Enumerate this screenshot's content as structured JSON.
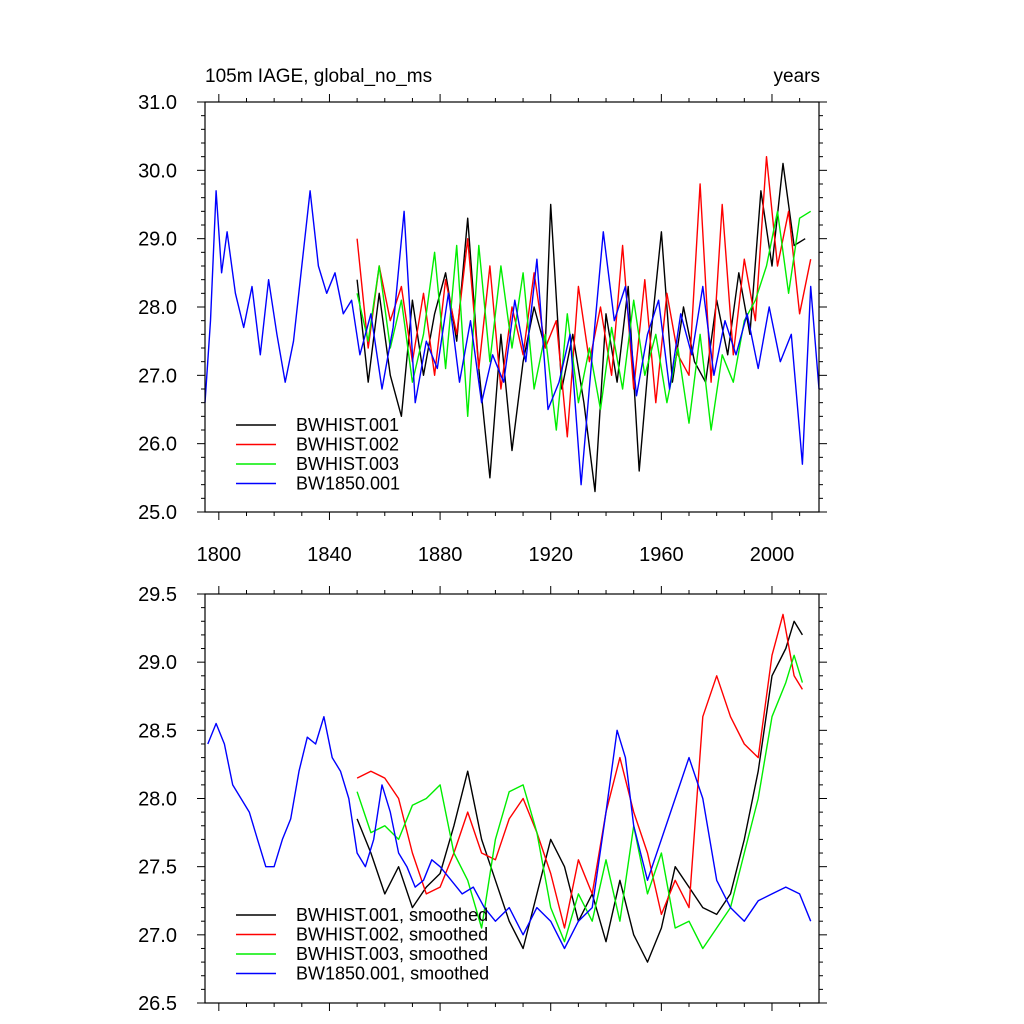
{
  "chart_data": [
    {
      "type": "line",
      "title": "105m IAGE, global_no_ms",
      "units_label": "years",
      "xlim": [
        1795,
        2017
      ],
      "ylim": [
        25.0,
        31.0
      ],
      "x_ticks": [
        1800,
        1840,
        1880,
        1920,
        1960,
        2000
      ],
      "x_tick_labels": [
        "1800",
        "1840",
        "1880",
        "1920",
        "1960",
        "2000"
      ],
      "y_ticks": [
        25.0,
        26.0,
        27.0,
        28.0,
        29.0,
        30.0,
        31.0
      ],
      "y_tick_labels": [
        "25.0",
        "26.0",
        "27.0",
        "28.0",
        "29.0",
        "30.0",
        "31.0"
      ],
      "legend_position": "bottom-left",
      "series": [
        {
          "name": "BWHIST.001",
          "color": "#000000",
          "x": [
            1850,
            1854,
            1858,
            1862,
            1866,
            1870,
            1874,
            1878,
            1882,
            1886,
            1890,
            1894,
            1898,
            1902,
            1906,
            1910,
            1914,
            1918,
            1920,
            1924,
            1928,
            1932,
            1936,
            1940,
            1944,
            1948,
            1952,
            1956,
            1960,
            1964,
            1968,
            1972,
            1976,
            1980,
            1984,
            1988,
            1992,
            1996,
            2000,
            2004,
            2008,
            2012
          ],
          "values": [
            28.4,
            26.9,
            28.2,
            27.0,
            26.4,
            28.1,
            27.0,
            27.9,
            28.5,
            27.5,
            29.3,
            27.1,
            25.5,
            27.6,
            25.9,
            27.2,
            28.0,
            27.4,
            29.5,
            26.8,
            27.6,
            26.6,
            25.3,
            27.9,
            26.9,
            28.3,
            25.6,
            27.5,
            29.1,
            26.9,
            28.0,
            27.2,
            26.9,
            28.1,
            27.3,
            28.5,
            27.6,
            29.7,
            28.6,
            30.1,
            28.9,
            29.0
          ]
        },
        {
          "name": "BWHIST.002",
          "color": "#ff0000",
          "x": [
            1850,
            1854,
            1858,
            1862,
            1866,
            1870,
            1874,
            1878,
            1882,
            1886,
            1890,
            1894,
            1898,
            1902,
            1906,
            1910,
            1914,
            1918,
            1922,
            1926,
            1930,
            1934,
            1938,
            1942,
            1946,
            1950,
            1954,
            1958,
            1962,
            1966,
            1970,
            1974,
            1978,
            1982,
            1986,
            1990,
            1994,
            1998,
            2002,
            2006,
            2010,
            2014
          ],
          "values": [
            29.0,
            27.4,
            28.6,
            27.8,
            28.3,
            27.2,
            28.2,
            27.0,
            28.4,
            27.6,
            29.0,
            27.1,
            28.6,
            26.8,
            28.0,
            27.3,
            28.5,
            27.4,
            27.8,
            26.1,
            28.3,
            27.2,
            28.0,
            27.0,
            28.9,
            26.8,
            28.4,
            26.6,
            28.2,
            27.3,
            27.0,
            29.8,
            26.9,
            29.5,
            27.3,
            28.7,
            27.8,
            30.2,
            28.6,
            29.4,
            27.9,
            28.7
          ]
        },
        {
          "name": "BWHIST.003",
          "color": "#00ee00",
          "x": [
            1850,
            1854,
            1858,
            1862,
            1866,
            1870,
            1874,
            1878,
            1882,
            1886,
            1890,
            1894,
            1898,
            1902,
            1906,
            1910,
            1914,
            1918,
            1922,
            1926,
            1930,
            1934,
            1938,
            1942,
            1946,
            1950,
            1954,
            1958,
            1962,
            1966,
            1970,
            1974,
            1978,
            1982,
            1986,
            1990,
            1994,
            1998,
            2002,
            2006,
            2010,
            2014
          ],
          "values": [
            28.2,
            27.5,
            28.6,
            27.4,
            28.1,
            26.9,
            27.6,
            28.8,
            27.1,
            28.9,
            26.4,
            28.9,
            27.2,
            28.6,
            27.4,
            28.5,
            26.8,
            27.6,
            26.2,
            27.9,
            26.6,
            27.4,
            26.5,
            27.7,
            26.8,
            28.1,
            27.0,
            27.6,
            26.6,
            27.4,
            26.3,
            27.6,
            26.2,
            27.3,
            26.9,
            27.8,
            28.1,
            28.6,
            29.4,
            28.2,
            29.3,
            29.4
          ]
        },
        {
          "name": "BW1850.001",
          "color": "#0000ff",
          "x": [
            1795,
            1797,
            1799,
            1801,
            1803,
            1806,
            1809,
            1812,
            1815,
            1818,
            1821,
            1824,
            1827,
            1830,
            1833,
            1836,
            1839,
            1842,
            1845,
            1848,
            1851,
            1855,
            1859,
            1863,
            1867,
            1871,
            1875,
            1879,
            1883,
            1887,
            1891,
            1895,
            1899,
            1903,
            1907,
            1911,
            1915,
            1919,
            1923,
            1927,
            1931,
            1935,
            1939,
            1943,
            1947,
            1951,
            1955,
            1959,
            1963,
            1967,
            1971,
            1975,
            1979,
            1983,
            1987,
            1991,
            1995,
            1999,
            2003,
            2007,
            2011,
            2014,
            2017
          ],
          "values": [
            26.6,
            27.8,
            29.7,
            28.5,
            29.1,
            28.2,
            27.7,
            28.3,
            27.3,
            28.4,
            27.6,
            26.9,
            27.5,
            28.6,
            29.7,
            28.6,
            28.2,
            28.5,
            27.9,
            28.1,
            27.3,
            27.9,
            26.8,
            27.7,
            29.4,
            26.6,
            27.5,
            27.1,
            28.2,
            26.9,
            27.8,
            26.6,
            27.3,
            26.9,
            28.1,
            27.2,
            28.7,
            26.5,
            26.9,
            27.6,
            25.4,
            27.3,
            29.1,
            27.8,
            28.3,
            26.7,
            27.6,
            28.1,
            26.8,
            27.9,
            27.3,
            28.3,
            27.0,
            27.8,
            27.3,
            27.9,
            27.1,
            28.0,
            27.2,
            27.6,
            25.7,
            28.3,
            26.8
          ]
        }
      ]
    },
    {
      "type": "line",
      "xlim": [
        1795,
        2017
      ],
      "ylim": [
        26.5,
        29.5
      ],
      "x_ticks": [
        1800,
        1840,
        1880,
        1920,
        1960,
        2000
      ],
      "y_ticks": [
        26.5,
        27.0,
        27.5,
        28.0,
        28.5,
        29.0,
        29.5
      ],
      "y_tick_labels": [
        "26.5",
        "27.0",
        "27.5",
        "28.0",
        "28.5",
        "29.0",
        "29.5"
      ],
      "legend_position": "bottom-left",
      "series": [
        {
          "name": "BWHIST.001, smoothed",
          "color": "#000000",
          "x": [
            1850,
            1855,
            1860,
            1865,
            1870,
            1875,
            1880,
            1885,
            1890,
            1895,
            1900,
            1905,
            1910,
            1915,
            1920,
            1925,
            1930,
            1935,
            1940,
            1945,
            1950,
            1955,
            1960,
            1965,
            1970,
            1975,
            1980,
            1985,
            1990,
            1995,
            2000,
            2005,
            2008,
            2011
          ],
          "values": [
            27.85,
            27.6,
            27.3,
            27.5,
            27.2,
            27.35,
            27.45,
            27.8,
            28.2,
            27.7,
            27.4,
            27.1,
            26.9,
            27.3,
            27.7,
            27.5,
            27.1,
            27.3,
            26.95,
            27.4,
            27.0,
            26.8,
            27.05,
            27.5,
            27.35,
            27.2,
            27.15,
            27.3,
            27.7,
            28.2,
            28.9,
            29.1,
            29.3,
            29.2
          ]
        },
        {
          "name": "BWHIST.002, smoothed",
          "color": "#ff0000",
          "x": [
            1850,
            1855,
            1860,
            1865,
            1870,
            1875,
            1880,
            1885,
            1890,
            1895,
            1900,
            1905,
            1910,
            1915,
            1920,
            1925,
            1930,
            1935,
            1940,
            1945,
            1950,
            1955,
            1960,
            1965,
            1970,
            1975,
            1980,
            1985,
            1990,
            1995,
            2000,
            2004,
            2008,
            2011
          ],
          "values": [
            28.15,
            28.2,
            28.15,
            28.0,
            27.6,
            27.3,
            27.35,
            27.6,
            27.9,
            27.6,
            27.55,
            27.85,
            28.0,
            27.75,
            27.45,
            27.05,
            27.55,
            27.3,
            27.9,
            28.3,
            27.9,
            27.6,
            27.15,
            27.4,
            27.2,
            28.6,
            28.9,
            28.6,
            28.4,
            28.3,
            29.05,
            29.35,
            28.9,
            28.8
          ]
        },
        {
          "name": "BWHIST.003, smoothed",
          "color": "#00ee00",
          "x": [
            1850,
            1855,
            1860,
            1865,
            1870,
            1875,
            1880,
            1885,
            1890,
            1895,
            1900,
            1905,
            1910,
            1915,
            1920,
            1925,
            1930,
            1935,
            1940,
            1945,
            1950,
            1955,
            1960,
            1965,
            1970,
            1975,
            1980,
            1985,
            1990,
            1995,
            2000,
            2005,
            2008,
            2011
          ],
          "values": [
            28.05,
            27.75,
            27.8,
            27.7,
            27.95,
            28.0,
            28.1,
            27.6,
            27.4,
            27.05,
            27.7,
            28.05,
            28.1,
            27.75,
            27.2,
            26.95,
            27.3,
            27.1,
            27.55,
            27.1,
            27.8,
            27.3,
            27.6,
            27.05,
            27.1,
            26.9,
            27.05,
            27.2,
            27.6,
            28.0,
            28.6,
            28.85,
            29.05,
            28.85
          ]
        },
        {
          "name": "BW1850.001, smoothed",
          "color": "#0000ff",
          "x": [
            1796,
            1799,
            1802,
            1805,
            1808,
            1811,
            1814,
            1817,
            1820,
            1823,
            1826,
            1829,
            1832,
            1835,
            1838,
            1841,
            1844,
            1847,
            1850,
            1853,
            1856,
            1859,
            1862,
            1865,
            1868,
            1871,
            1874,
            1877,
            1880,
            1884,
            1888,
            1892,
            1896,
            1900,
            1905,
            1910,
            1915,
            1920,
            1925,
            1930,
            1935,
            1940,
            1944,
            1947,
            1950,
            1955,
            1960,
            1965,
            1970,
            1975,
            1980,
            1985,
            1990,
            1995,
            2000,
            2005,
            2010,
            2014
          ],
          "values": [
            28.4,
            28.55,
            28.4,
            28.1,
            28.0,
            27.9,
            27.7,
            27.5,
            27.5,
            27.7,
            27.85,
            28.2,
            28.45,
            28.4,
            28.6,
            28.3,
            28.2,
            28.0,
            27.6,
            27.5,
            27.7,
            28.1,
            27.9,
            27.6,
            27.5,
            27.35,
            27.4,
            27.55,
            27.5,
            27.4,
            27.3,
            27.35,
            27.2,
            27.1,
            27.2,
            27.0,
            27.2,
            27.1,
            26.9,
            27.1,
            27.2,
            27.9,
            28.5,
            28.3,
            27.8,
            27.4,
            27.7,
            28.0,
            28.3,
            28.0,
            27.4,
            27.2,
            27.1,
            27.25,
            27.3,
            27.35,
            27.3,
            27.1
          ]
        }
      ]
    }
  ]
}
